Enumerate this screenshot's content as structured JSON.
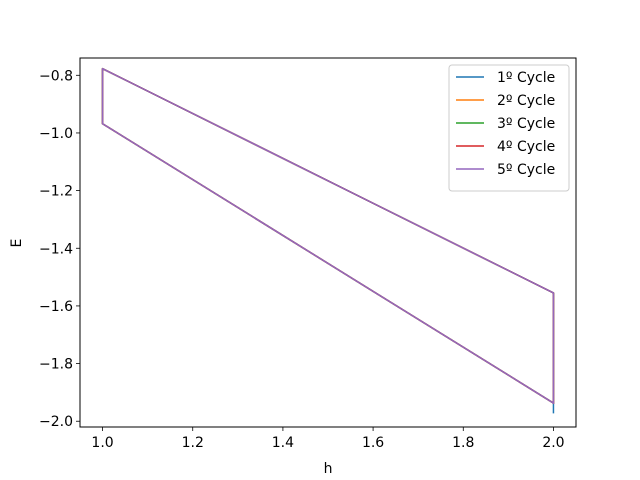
{
  "chart_data": {
    "type": "line",
    "title": "",
    "xlabel": "h",
    "ylabel": "E",
    "xlim": [
      0.95,
      2.05
    ],
    "ylim": [
      -2.02,
      -0.74
    ],
    "x_ticks": [
      1.0,
      1.2,
      1.4,
      1.6,
      1.8,
      2.0
    ],
    "x_tick_labels": [
      "1.0",
      "1.2",
      "1.4",
      "1.6",
      "1.8",
      "2.0"
    ],
    "y_ticks": [
      -2.0,
      -1.8,
      -1.6,
      -1.4,
      -1.2,
      -1.0,
      -0.8
    ],
    "y_tick_labels": [
      "−2.0",
      "−1.8",
      "−1.6",
      "−1.4",
      "−1.2",
      "−1.0",
      "−0.8"
    ],
    "grid": false,
    "legend_position": "top-right",
    "series": [
      {
        "name": "1º Cycle",
        "color": "#1f77b4",
        "x": [
          2.0,
          2.0,
          1.0,
          1.0,
          2.0,
          2.0
        ],
        "y": [
          -1.97,
          -1.937,
          -0.968,
          -0.777,
          -1.555,
          -1.937
        ]
      },
      {
        "name": "2º Cycle",
        "color": "#ff7f0e",
        "x": [
          2.0,
          1.0,
          1.0,
          2.0,
          2.0
        ],
        "y": [
          -1.937,
          -0.968,
          -0.777,
          -1.555,
          -1.937
        ]
      },
      {
        "name": "3º Cycle",
        "color": "#2ca02c",
        "x": [
          2.0,
          1.0,
          1.0,
          2.0,
          2.0
        ],
        "y": [
          -1.937,
          -0.968,
          -0.777,
          -1.555,
          -1.937
        ]
      },
      {
        "name": "4º Cycle",
        "color": "#d62728",
        "x": [
          2.0,
          1.0,
          1.0,
          2.0,
          2.0
        ],
        "y": [
          -1.937,
          -0.968,
          -0.777,
          -1.555,
          -1.937
        ]
      },
      {
        "name": "5º Cycle",
        "color": "#9467bd",
        "x": [
          2.0,
          1.0,
          1.0,
          2.0,
          2.0
        ],
        "y": [
          -1.937,
          -0.968,
          -0.777,
          -1.555,
          -1.937
        ]
      }
    ]
  }
}
